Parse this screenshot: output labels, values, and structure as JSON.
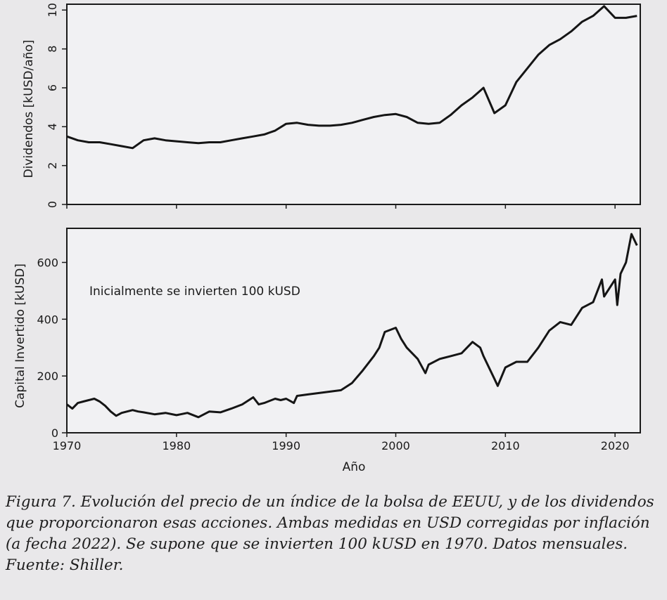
{
  "chart_data": [
    {
      "type": "line",
      "ylabel": "Dividendos [kUSD/año]",
      "xlim": [
        1970,
        2022.3
      ],
      "ylim": [
        0,
        10.3
      ],
      "yticks": [
        "0",
        "2",
        "4",
        "6",
        "8",
        "10"
      ],
      "grid": false,
      "series": [
        {
          "x": [
            1970,
            1971,
            1972,
            1973,
            1974,
            1975,
            1976,
            1977,
            1978,
            1979,
            1980,
            1981,
            1982,
            1983,
            1984,
            1985,
            1986,
            1987,
            1988,
            1989,
            1990,
            1991,
            1992,
            1993,
            1994,
            1995,
            1996,
            1997,
            1998,
            1999,
            2000,
            2001,
            2002,
            2003,
            2004,
            2005,
            2006,
            2007,
            2008,
            2009,
            2010,
            2011,
            2012,
            2013,
            2014,
            2015,
            2016,
            2017,
            2018,
            2019,
            2020,
            2021,
            2022
          ],
          "y": [
            3.5,
            3.3,
            3.2,
            3.2,
            3.1,
            3.0,
            2.9,
            3.3,
            3.4,
            3.3,
            3.25,
            3.2,
            3.15,
            3.2,
            3.2,
            3.3,
            3.4,
            3.5,
            3.6,
            3.8,
            4.15,
            4.2,
            4.1,
            4.05,
            4.05,
            4.1,
            4.2,
            4.35,
            4.5,
            4.6,
            4.65,
            4.5,
            4.2,
            4.15,
            4.2,
            4.6,
            5.1,
            5.5,
            6.0,
            4.7,
            5.1,
            6.3,
            7.0,
            7.7,
            8.2,
            8.5,
            8.9,
            9.4,
            9.7,
            10.2,
            9.6,
            9.6,
            9.7
          ]
        }
      ]
    },
    {
      "type": "line",
      "ylabel": "Capital Invertido [kUSD]",
      "xlabel": "Año",
      "xlim": [
        1970,
        2022.3
      ],
      "ylim": [
        0,
        720
      ],
      "xticks": [
        "1970",
        "1980",
        "1990",
        "2000",
        "2010",
        "2020"
      ],
      "yticks": [
        "0",
        "200",
        "400",
        "600"
      ],
      "annotations": [
        "Inicialmente se invierten 100 kUSD"
      ],
      "grid": false,
      "series": [
        {
          "x": [
            1970,
            1970.5,
            1971,
            1971.5,
            1972,
            1972.5,
            1973,
            1973.5,
            1974,
            1974.5,
            1975,
            1975.5,
            1976,
            1976.5,
            1977,
            1978,
            1979,
            1980,
            1981,
            1982,
            1983,
            1984,
            1985,
            1986,
            1987,
            1987.5,
            1988,
            1989,
            1989.5,
            1990,
            1990.7,
            1991,
            1992,
            1993,
            1994,
            1995,
            1996,
            1997,
            1998,
            1998.5,
            1999,
            2000,
            2000.5,
            2001,
            2002,
            2002.7,
            2003,
            2004,
            2005,
            2006,
            2007,
            2007.7,
            2008,
            2009,
            2009.3,
            2010,
            2011,
            2012,
            2013,
            2014,
            2015,
            2016,
            2017,
            2018,
            2018.8,
            2019,
            2020,
            2020.2,
            2020.5,
            2021,
            2021.5,
            2022
          ],
          "y": [
            100,
            85,
            105,
            110,
            115,
            120,
            110,
            95,
            75,
            60,
            70,
            75,
            80,
            75,
            72,
            65,
            70,
            62,
            70,
            55,
            75,
            72,
            85,
            100,
            125,
            100,
            105,
            120,
            115,
            120,
            105,
            130,
            135,
            140,
            145,
            150,
            175,
            220,
            270,
            300,
            355,
            370,
            330,
            300,
            260,
            210,
            240,
            260,
            270,
            280,
            320,
            300,
            270,
            190,
            165,
            230,
            250,
            250,
            300,
            360,
            390,
            380,
            440,
            460,
            540,
            480,
            540,
            450,
            560,
            600,
            700,
            660
          ]
        }
      ]
    }
  ],
  "caption": "Figura 7. Evolución del precio de un índice de la bolsa de EEUU, y de los dividendos que proporcionaron esas acciones. Ambas medidas en USD corregidas por inflación (a fecha 2022). Se supone que se invierten 100 kUSD en 1970. Datos mensuales. Fuente: Shiller."
}
